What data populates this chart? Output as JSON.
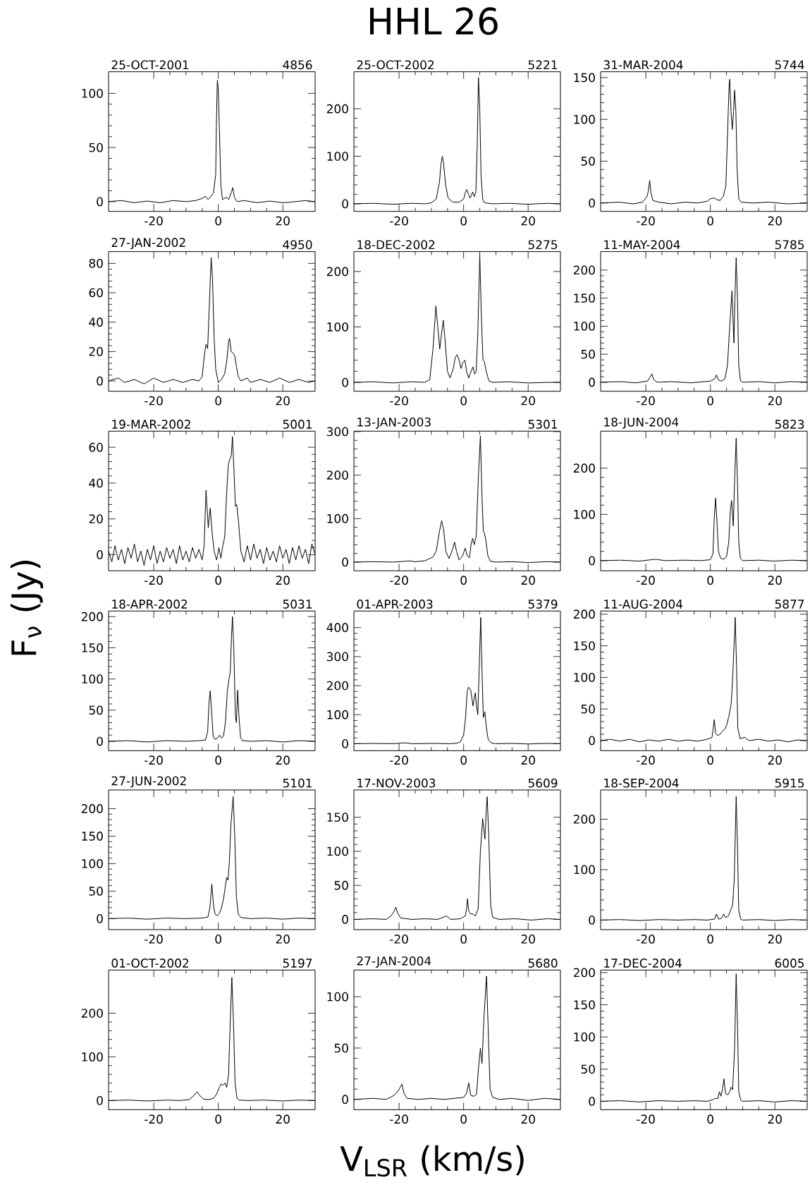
{
  "chart_data": [
    {
      "type": "line",
      "title": "25-OCT-2001",
      "subtitle": "4856",
      "xlim": [
        -34,
        30
      ],
      "xticks": [
        -20,
        0,
        20
      ],
      "ylim": [
        -9,
        120
      ],
      "yticks": [
        0,
        50,
        100
      ],
      "x": [
        -34,
        -30,
        -26,
        -22,
        -18,
        -14,
        -10,
        -7,
        -5,
        -4,
        -3.2,
        -2.5,
        -1.5,
        -0.8,
        -0.6,
        -0.3,
        0.0,
        0.4,
        0.8,
        1.3,
        2.5,
        3.2,
        4.0,
        4.5,
        5.0,
        5.8,
        8,
        12,
        16,
        20,
        24,
        27,
        30
      ],
      "values": [
        0,
        1,
        -1,
        0.5,
        -1,
        1,
        0,
        1,
        3,
        5,
        2,
        4,
        8,
        25,
        70,
        112,
        105,
        60,
        15,
        2,
        4,
        2,
        8,
        13,
        4,
        0,
        1,
        -1,
        0.5,
        -1,
        0,
        1,
        0
      ]
    },
    {
      "type": "line",
      "title": "25-OCT-2002",
      "subtitle": "5221",
      "annotations": [
        "HHL 26"
      ],
      "xlim": [
        -34,
        30
      ],
      "xticks": [
        -20,
        0,
        20
      ],
      "ylim": [
        -16,
        278
      ],
      "yticks": [
        0,
        100,
        200
      ],
      "x": [
        -34,
        -28,
        -22,
        -16,
        -12,
        -10,
        -8.5,
        -7.5,
        -7,
        -6.6,
        -6.2,
        -5.6,
        -4.8,
        -3.5,
        -1.5,
        0,
        0.6,
        1.0,
        1.5,
        2.0,
        2.4,
        2.8,
        3.3,
        3.8,
        4.2,
        4.6,
        5.0,
        5.4,
        5.9,
        6.5,
        9,
        14,
        20,
        26,
        30
      ],
      "values": [
        0,
        1,
        -1,
        1,
        0,
        2,
        10,
        45,
        85,
        100,
        85,
        40,
        12,
        4,
        3,
        10,
        25,
        30,
        20,
        12,
        18,
        25,
        15,
        25,
        120,
        266,
        200,
        60,
        10,
        2,
        0,
        1,
        -1,
        1,
        0
      ]
    },
    {
      "type": "line",
      "title": "31-MAR-2004",
      "subtitle": "5744",
      "xlim": [
        -34,
        30
      ],
      "xticks": [
        -20,
        0,
        20
      ],
      "ylim": [
        -10,
        157
      ],
      "yticks": [
        0,
        50,
        100,
        150
      ],
      "x": [
        -34,
        -28,
        -24,
        -21,
        -19.6,
        -19.2,
        -18.8,
        -18.4,
        -17.8,
        -16,
        -12,
        -8,
        -4,
        -1,
        0,
        1.2,
        2,
        3,
        4,
        4.8,
        5.3,
        5.8,
        6.0,
        6.4,
        6.8,
        7.2,
        7.5,
        7.9,
        8.3,
        8.8,
        9.5,
        13,
        18,
        24,
        30
      ],
      "values": [
        0,
        1,
        -1,
        1,
        8,
        15,
        27,
        12,
        3,
        1,
        -1,
        1,
        0,
        2,
        5,
        6,
        4,
        3,
        8,
        20,
        80,
        140,
        148,
        110,
        88,
        110,
        135,
        110,
        40,
        5,
        1,
        0,
        1,
        -1,
        0
      ]
    },
    {
      "type": "line",
      "title": "27-JAN-2002",
      "subtitle": "4950",
      "xlim": [
        -34,
        30
      ],
      "xticks": [
        -20,
        0,
        20
      ],
      "ylim": [
        -7,
        88
      ],
      "yticks": [
        0,
        20,
        40,
        60,
        80
      ],
      "x": [
        -34,
        -31,
        -29,
        -26,
        -23,
        -20,
        -17,
        -14,
        -11,
        -8,
        -6,
        -5,
        -4.3,
        -3.8,
        -3.3,
        -2.8,
        -2.2,
        -1.8,
        -1.3,
        -0.8,
        0,
        1,
        2,
        2.7,
        3.2,
        3.5,
        4,
        4.6,
        5.1,
        5.6,
        6.2,
        7,
        9,
        10,
        13,
        16,
        19,
        22,
        25,
        28,
        30
      ],
      "values": [
        0,
        2,
        -1,
        1,
        -2,
        2,
        -1,
        1,
        -1,
        1,
        0,
        3,
        18,
        25,
        22,
        50,
        84,
        70,
        30,
        8,
        -1,
        1,
        5,
        15,
        27,
        29,
        20,
        19,
        17,
        10,
        3,
        0,
        2,
        -1,
        1,
        -1,
        2,
        -1,
        1,
        -1,
        0
      ]
    },
    {
      "type": "line",
      "title": "18-DEC-2002",
      "subtitle": "5275",
      "xlim": [
        -34,
        30
      ],
      "xticks": [
        -20,
        0,
        20
      ],
      "ylim": [
        -16,
        236
      ],
      "yticks": [
        0,
        100,
        200
      ],
      "x": [
        -34,
        -28,
        -22,
        -16,
        -12,
        -10.5,
        -9.5,
        -8.6,
        -8.0,
        -7.4,
        -6.8,
        -6.3,
        -5.8,
        -5.0,
        -4.2,
        -3.2,
        -2.6,
        -2.0,
        -1.4,
        -0.8,
        -0.3,
        0.4,
        0.9,
        1.6,
        2.3,
        2.9,
        3.4,
        3.9,
        4.4,
        5.0,
        5.5,
        6.0,
        6.4,
        7.0,
        7.8,
        9,
        14,
        20,
        26,
        30
      ],
      "values": [
        0,
        1,
        -1,
        1,
        0,
        5,
        60,
        138,
        100,
        60,
        90,
        112,
        80,
        20,
        8,
        25,
        45,
        50,
        40,
        25,
        35,
        40,
        20,
        8,
        20,
        28,
        15,
        20,
        90,
        230,
        120,
        40,
        38,
        20,
        3,
        0,
        1,
        -1,
        0,
        0
      ]
    },
    {
      "type": "line",
      "title": "11-MAY-2004",
      "subtitle": "5785",
      "xlim": [
        -34,
        30
      ],
      "xticks": [
        -20,
        0,
        20
      ],
      "ylim": [
        -16,
        233
      ],
      "yticks": [
        0,
        50,
        100,
        150,
        200
      ],
      "x": [
        -34,
        -28,
        -23,
        -19.5,
        -18.6,
        -18.1,
        -17.6,
        -16.5,
        -12,
        -6,
        -2,
        0,
        1.3,
        1.9,
        2.5,
        3.5,
        4.5,
        5.3,
        6.0,
        6.7,
        7.1,
        7.3,
        7.6,
        8.0,
        8.4,
        8.8,
        9.3,
        10,
        15,
        20,
        25,
        30
      ],
      "values": [
        0,
        1,
        -1,
        2,
        10,
        15,
        5,
        0,
        1,
        -1,
        1,
        2,
        6,
        13,
        4,
        2,
        6,
        30,
        100,
        163,
        100,
        70,
        150,
        222,
        150,
        30,
        3,
        0,
        1,
        -1,
        1,
        0
      ]
    },
    {
      "type": "line",
      "title": "19-MAR-2002",
      "subtitle": "5001",
      "xlim": [
        -34,
        30
      ],
      "xticks": [
        -20,
        0,
        20
      ],
      "ylim": [
        -9,
        69
      ],
      "yticks": [
        0,
        20,
        40,
        60
      ],
      "x": [
        -34,
        -33,
        -32,
        -31,
        -30,
        -29,
        -28,
        -27,
        -26,
        -25,
        -24,
        -23,
        -22,
        -21,
        -20,
        -19,
        -18,
        -17,
        -16,
        -15,
        -14,
        -13,
        -12,
        -11,
        -10,
        -9,
        -8,
        -7,
        -6,
        -5,
        -4.4,
        -3.8,
        -3.1,
        -2.5,
        -1.9,
        -1.3,
        -0.5,
        0.2,
        0.8,
        1.4,
        2.0,
        2.6,
        3.1,
        3.5,
        4.0,
        4.4,
        4.9,
        5.3,
        5.7,
        6.3,
        7,
        8,
        9,
        10,
        11,
        12,
        13,
        14,
        15,
        16,
        17,
        18,
        19,
        20,
        21,
        22,
        23,
        24,
        25,
        26,
        27,
        28,
        29,
        30
      ],
      "values": [
        2,
        -4,
        5,
        -3,
        3,
        -5,
        4,
        -2,
        6,
        -4,
        2,
        -6,
        3,
        -3,
        5,
        -5,
        2,
        -4,
        4,
        -2,
        3,
        -5,
        5,
        -3,
        2,
        -4,
        4,
        -2,
        3,
        -3,
        5,
        36,
        15,
        26,
        12,
        2,
        -3,
        4,
        -2,
        5,
        10,
        35,
        50,
        53,
        55,
        66,
        45,
        27,
        28,
        18,
        2,
        -4,
        5,
        -3,
        6,
        -2,
        3,
        -5,
        4,
        -3,
        2,
        -4,
        5,
        -2,
        3,
        -5,
        4,
        -3,
        5,
        -2,
        3,
        -5,
        6,
        0
      ]
    },
    {
      "type": "line",
      "title": "13-JAN-2003",
      "subtitle": "5301",
      "xlim": [
        -34,
        30
      ],
      "xticks": [
        -20,
        0,
        20
      ],
      "ylim": [
        -20,
        301
      ],
      "yticks": [
        0,
        100,
        200,
        300
      ],
      "x": [
        -34,
        -28,
        -22,
        -18,
        -17,
        -15,
        -12,
        -10.5,
        -9.5,
        -8.5,
        -7.5,
        -6.8,
        -6.2,
        -5.5,
        -4.5,
        -3.4,
        -2.8,
        -2.2,
        -1.4,
        -0.3,
        0.5,
        1.1,
        1.8,
        2.3,
        2.8,
        3.3,
        3.9,
        4.6,
        5.2,
        5.7,
        6.1,
        6.4,
        6.9,
        7.5,
        8.3,
        10,
        15,
        20,
        26,
        30
      ],
      "values": [
        0,
        1,
        0,
        2,
        3,
        1,
        3,
        8,
        12,
        25,
        70,
        95,
        75,
        25,
        8,
        30,
        46,
        25,
        5,
        15,
        32,
        15,
        10,
        40,
        55,
        40,
        60,
        200,
        290,
        150,
        70,
        68,
        50,
        15,
        2,
        0,
        1,
        -1,
        1,
        0
      ]
    },
    {
      "type": "line",
      "title": "18-JUN-2004",
      "subtitle": "5823",
      "xlim": [
        -34,
        30
      ],
      "xticks": [
        -20,
        0,
        20
      ],
      "ylim": [
        -22,
        280
      ],
      "yticks": [
        0,
        100,
        200
      ],
      "x": [
        -34,
        -28,
        -22,
        -17,
        -14,
        -8,
        -3,
        0,
        0.8,
        1.2,
        1.6,
        2.0,
        2.5,
        3.2,
        4,
        5,
        5.7,
        6.2,
        6.6,
        7.1,
        7.5,
        8.0,
        8.4,
        8.8,
        9.3,
        10,
        15,
        20,
        25,
        30
      ],
      "values": [
        0,
        1,
        -1,
        3,
        0,
        1,
        0,
        2,
        15,
        90,
        135,
        90,
        20,
        5,
        3,
        8,
        40,
        110,
        130,
        75,
        170,
        265,
        170,
        40,
        5,
        0,
        1,
        -1,
        1,
        0
      ]
    },
    {
      "type": "line",
      "title": "18-APR-2002",
      "subtitle": "5031",
      "ylabel": "F$_{ν}$ (Jy)",
      "xlim": [
        -34,
        30
      ],
      "xticks": [
        -20,
        0,
        20
      ],
      "ylim": [
        -15,
        209
      ],
      "yticks": [
        0,
        50,
        100,
        150,
        200
      ],
      "x": [
        -34,
        -28,
        -22,
        -16,
        -10,
        -6,
        -4,
        -3.3,
        -2.9,
        -2.5,
        -2.1,
        -1.6,
        -1,
        -0.3,
        0.4,
        1.0,
        1.6,
        2.2,
        2.8,
        3.3,
        3.7,
        4.1,
        4.4,
        4.8,
        5.3,
        5.6,
        6.0,
        6.4,
        6.9,
        7.5,
        10,
        15,
        20,
        25,
        30
      ],
      "values": [
        0,
        1,
        -1,
        1,
        0,
        1,
        2,
        15,
        60,
        81,
        50,
        8,
        3,
        5,
        10,
        5,
        8,
        30,
        80,
        100,
        110,
        170,
        200,
        150,
        40,
        30,
        82,
        40,
        6,
        1,
        0,
        1,
        -1,
        1,
        0
      ]
    },
    {
      "type": "line",
      "title": "01-APR-2003",
      "subtitle": "5379",
      "xlim": [
        -34,
        30
      ],
      "xticks": [
        -20,
        0,
        20
      ],
      "ylim": [
        -24,
        457
      ],
      "yticks": [
        0,
        100,
        200,
        300,
        400
      ],
      "x": [
        -34,
        -28,
        -22,
        -18,
        -16,
        -10,
        -4,
        -2,
        -1,
        0,
        0.6,
        1.1,
        1.5,
        2.2,
        2.9,
        3.6,
        4.1,
        4.4,
        4.8,
        5.3,
        5.7,
        6.1,
        6.6,
        7.0,
        7.6,
        8.5,
        10,
        15,
        20,
        25,
        30
      ],
      "values": [
        0,
        1,
        0,
        3,
        0,
        1,
        0,
        2,
        6,
        30,
        90,
        180,
        195,
        185,
        130,
        175,
        120,
        100,
        250,
        435,
        250,
        90,
        110,
        60,
        15,
        3,
        0,
        1,
        -1,
        1,
        0
      ]
    },
    {
      "type": "line",
      "title": "11-AUG-2004",
      "subtitle": "5877",
      "xlim": [
        -34,
        30
      ],
      "xticks": [
        -20,
        0,
        20
      ],
      "ylim": [
        -16,
        205
      ],
      "yticks": [
        0,
        50,
        100,
        150,
        200
      ],
      "x": [
        -34,
        -31,
        -28,
        -25,
        -22,
        -19,
        -16,
        -13,
        -10,
        -7,
        -4,
        -1,
        0.5,
        0.9,
        1.2,
        1.6,
        2.2,
        3.0,
        3.8,
        4.5,
        5.1,
        5.8,
        6.5,
        7.0,
        7.7,
        8.1,
        8.5,
        9.2,
        10.6,
        12,
        15,
        18,
        21,
        24,
        27,
        30
      ],
      "values": [
        0,
        2,
        -1,
        2,
        -2,
        1,
        -1,
        2,
        -1,
        1,
        -1,
        2,
        5,
        20,
        33,
        12,
        8,
        10,
        15,
        18,
        25,
        40,
        60,
        110,
        195,
        120,
        20,
        3,
        5,
        0,
        2,
        -1,
        1,
        -2,
        1,
        0
      ]
    },
    {
      "type": "line",
      "title": "27-JUN-2002",
      "subtitle": "5101",
      "xlim": [
        -34,
        30
      ],
      "xticks": [
        -20,
        0,
        20
      ],
      "ylim": [
        -20,
        234
      ],
      "yticks": [
        0,
        50,
        100,
        150,
        200
      ],
      "x": [
        -34,
        -28,
        -22,
        -16,
        -10,
        -5,
        -3.2,
        -2.6,
        -2.0,
        -1.5,
        -1,
        -0.3,
        0.4,
        1.0,
        1.6,
        2.1,
        2.6,
        3.0,
        3.4,
        3.9,
        4.6,
        5.1,
        5.6,
        6.2,
        7,
        10,
        15,
        20,
        25,
        30
      ],
      "values": [
        0,
        1,
        -1,
        1,
        0,
        1,
        3,
        20,
        63,
        25,
        8,
        5,
        10,
        20,
        35,
        55,
        75,
        70,
        100,
        170,
        222,
        150,
        40,
        8,
        2,
        0,
        1,
        -1,
        1,
        0
      ]
    },
    {
      "type": "line",
      "title": "17-NOV-2003",
      "subtitle": "5609",
      "xlim": [
        -34,
        30
      ],
      "xticks": [
        -20,
        0,
        20
      ],
      "ylim": [
        -15,
        190
      ],
      "yticks": [
        0,
        50,
        100,
        150
      ],
      "x": [
        -34,
        -28,
        -24,
        -22.5,
        -21.5,
        -21.0,
        -20.5,
        -19.5,
        -16,
        -12,
        -8,
        -5.3,
        -4,
        -1,
        0.5,
        0.9,
        1.2,
        1.6,
        2.2,
        2.9,
        3.6,
        4.5,
        5.2,
        5.9,
        6.6,
        7.0,
        7.3,
        7.8,
        8.4,
        9,
        11,
        16,
        21,
        26,
        30
      ],
      "values": [
        0,
        1,
        0,
        5,
        12,
        18,
        10,
        2,
        0,
        1,
        0,
        5,
        0,
        1,
        5,
        15,
        30,
        12,
        8,
        8,
        5,
        15,
        100,
        148,
        118,
        160,
        180,
        120,
        20,
        3,
        0,
        1,
        -1,
        1,
        0
      ]
    },
    {
      "type": "line",
      "title": "18-SEP-2004",
      "subtitle": "5915",
      "xlim": [
        -34,
        30
      ],
      "xticks": [
        -20,
        0,
        20
      ],
      "ylim": [
        -19,
        258
      ],
      "yticks": [
        0,
        100,
        200
      ],
      "x": [
        -34,
        -28,
        -22,
        -16,
        -10,
        -5,
        -1,
        1.3,
        1.9,
        2.5,
        3.4,
        4.1,
        4.7,
        5.6,
        6.3,
        6.9,
        7.4,
        8.0,
        8.4,
        8.8,
        9.4,
        10,
        15,
        20,
        25,
        30
      ],
      "values": [
        0,
        1,
        -1,
        1,
        0,
        1,
        0,
        2,
        12,
        2,
        3,
        12,
        5,
        8,
        20,
        30,
        80,
        245,
        150,
        20,
        2,
        0,
        1,
        -1,
        1,
        0
      ]
    },
    {
      "type": "line",
      "title": "01-OCT-2002",
      "subtitle": "5197",
      "xlim": [
        -34,
        30
      ],
      "xticks": [
        -20,
        0,
        20
      ],
      "ylim": [
        -21,
        299
      ],
      "yticks": [
        0,
        100,
        200
      ],
      "x": [
        -34,
        -28,
        -22,
        -16,
        -12,
        -9,
        -7.5,
        -6.6,
        -5.8,
        -4.5,
        -3,
        -1.5,
        -0.5,
        0.3,
        0.9,
        1.5,
        2.1,
        2.6,
        3.2,
        3.7,
        4.2,
        4.7,
        5.2,
        5.8,
        6.5,
        9,
        14,
        20,
        25,
        30
      ],
      "values": [
        0,
        1,
        -1,
        1,
        0,
        2,
        12,
        20,
        12,
        3,
        2,
        5,
        15,
        30,
        38,
        35,
        40,
        30,
        60,
        180,
        282,
        180,
        40,
        5,
        1,
        0,
        1,
        -1,
        1,
        0
      ]
    },
    {
      "type": "line",
      "title": "27-JAN-2004",
      "subtitle": "5680",
      "xlabel": "V$_{LSR}$ (km/s)",
      "xlim": [
        -34,
        30
      ],
      "xticks": [
        -20,
        0,
        20
      ],
      "ylim": [
        -10,
        126
      ],
      "yticks": [
        0,
        50,
        100
      ],
      "x": [
        -34,
        -28,
        -24,
        -21.5,
        -20.3,
        -19.1,
        -18.5,
        -17.5,
        -14,
        -10,
        -6,
        -3,
        0,
        0.9,
        1.6,
        2.2,
        3.2,
        4,
        4.6,
        5.2,
        5.7,
        6.3,
        7.1,
        7.6,
        8.2,
        9,
        11,
        15,
        20,
        25,
        30
      ],
      "values": [
        0,
        1,
        0,
        4,
        8,
        15,
        6,
        1,
        0,
        1,
        0,
        1,
        2,
        6,
        16,
        4,
        3,
        5,
        30,
        50,
        35,
        80,
        120,
        70,
        10,
        2,
        0,
        1,
        -1,
        1,
        0
      ]
    },
    {
      "type": "line",
      "title": "17-DEC-2004",
      "subtitle": "6005",
      "xlim": [
        -34,
        30
      ],
      "xticks": [
        -20,
        0,
        20
      ],
      "ylim": [
        -13,
        204
      ],
      "yticks": [
        0,
        50,
        100,
        150,
        200
      ],
      "x": [
        -34,
        -28,
        -22,
        -16,
        -10,
        -5,
        -1,
        1.0,
        1.6,
        2.3,
        2.8,
        3.3,
        3.8,
        4.2,
        4.7,
        5.4,
        6.0,
        6.4,
        6.9,
        7.5,
        8.0,
        8.4,
        8.8,
        9.4,
        10,
        15,
        20,
        25,
        30
      ],
      "values": [
        0,
        1,
        -1,
        1,
        0,
        1,
        0,
        3,
        5,
        4,
        15,
        8,
        20,
        35,
        12,
        10,
        15,
        22,
        18,
        80,
        198,
        120,
        15,
        2,
        0,
        1,
        -1,
        1,
        0
      ]
    }
  ]
}
